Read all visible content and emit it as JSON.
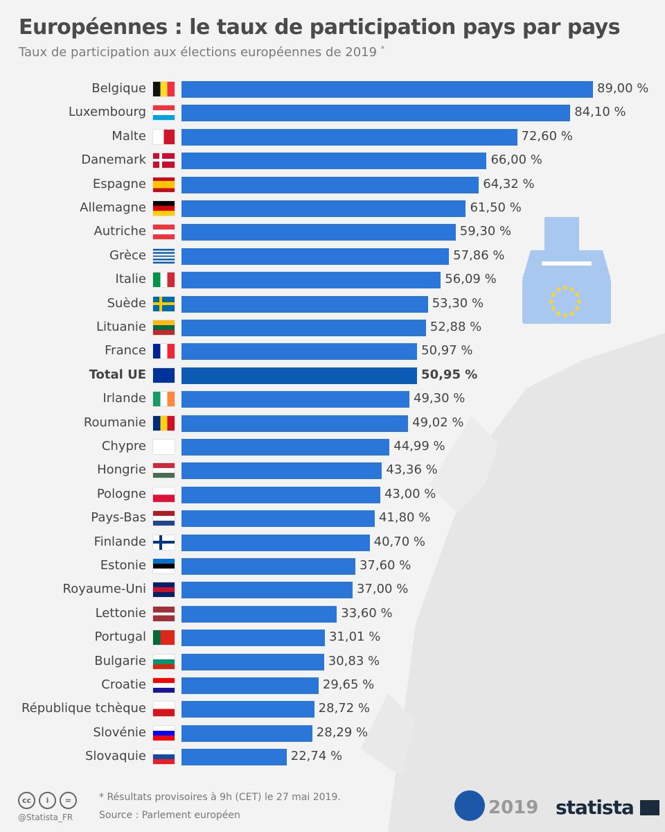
{
  "header": {
    "title": "Européennes : le taux de participation pays par pays",
    "subtitle": "Taux de participation aux élections européennes de 2019",
    "subtitle_mark": "*"
  },
  "chart_data": {
    "type": "bar",
    "orientation": "horizontal",
    "unit": "%",
    "xlim": [
      0,
      89
    ],
    "title": "Européennes : le taux de participation pays par pays",
    "highlight": "Total UE",
    "categories": [
      "Belgique",
      "Luxembourg",
      "Malte",
      "Danemark",
      "Espagne",
      "Allemagne",
      "Autriche",
      "Grèce",
      "Italie",
      "Suède",
      "Lituanie",
      "France",
      "Total UE",
      "Irlande",
      "Roumanie",
      "Chypre",
      "Hongrie",
      "Pologne",
      "Pays-Bas",
      "Finlande",
      "Estonie",
      "Royaume-Uni",
      "Lettonie",
      "Portugal",
      "Bulgarie",
      "Croatie",
      "République tchèque",
      "Slovénie",
      "Slovaquie"
    ],
    "values": [
      89.0,
      84.1,
      72.6,
      66.0,
      64.32,
      61.5,
      59.3,
      57.86,
      56.09,
      53.3,
      52.88,
      50.97,
      50.95,
      49.3,
      49.02,
      44.99,
      43.36,
      43.0,
      41.8,
      40.7,
      37.6,
      37.0,
      33.6,
      31.01,
      30.83,
      29.65,
      28.72,
      28.29,
      22.74
    ],
    "value_labels": [
      "89,00 %",
      "84,10 %",
      "72,60 %",
      "66,00 %",
      "64,32 %",
      "61,50 %",
      "59,30 %",
      "57,86 %",
      "56,09 %",
      "53,30 %",
      "52,88 %",
      "50,97 %",
      "50,95 %",
      "49,30 %",
      "49,02 %",
      "44,99 %",
      "43,36 %",
      "43,00 %",
      "41,80 %",
      "40,70 %",
      "37,60 %",
      "37,00 %",
      "33,60 %",
      "31,01 %",
      "30,83 %",
      "29,65 %",
      "28,72 %",
      "28,29 %",
      "22,74 %"
    ],
    "flags": [
      {
        "d": "v",
        "c": [
          "#111111",
          "#fdda24",
          "#ef3340"
        ]
      },
      {
        "d": "h",
        "c": [
          "#ef3340",
          "#ffffff",
          "#00a3e0"
        ]
      },
      {
        "d": "v",
        "c": [
          "#ffffff",
          "#cf142b"
        ]
      },
      {
        "d": "x",
        "c": [
          "#c8102e",
          "#ffffff"
        ]
      },
      {
        "d": "h",
        "c": [
          "#c60b1e",
          "#ffc400",
          "#ffc400",
          "#c60b1e"
        ]
      },
      {
        "d": "h",
        "c": [
          "#000000",
          "#dd0000",
          "#ffce00"
        ]
      },
      {
        "d": "h",
        "c": [
          "#ef3340",
          "#ffffff",
          "#ef3340"
        ]
      },
      {
        "d": "h",
        "c": [
          "#0d5eaf",
          "#ffffff",
          "#0d5eaf",
          "#ffffff",
          "#0d5eaf",
          "#ffffff",
          "#0d5eaf",
          "#ffffff",
          "#0d5eaf"
        ]
      },
      {
        "d": "v",
        "c": [
          "#009246",
          "#ffffff",
          "#ce2b37"
        ]
      },
      {
        "d": "x",
        "c": [
          "#006aa7",
          "#fecc00"
        ]
      },
      {
        "d": "h",
        "c": [
          "#fdb913",
          "#006a44",
          "#c1272d"
        ]
      },
      {
        "d": "v",
        "c": [
          "#002395",
          "#ffffff",
          "#ed2939"
        ]
      },
      {
        "d": "h",
        "c": [
          "#003399"
        ]
      },
      {
        "d": "v",
        "c": [
          "#169b62",
          "#ffffff",
          "#ff883e"
        ]
      },
      {
        "d": "v",
        "c": [
          "#002b7f",
          "#fcd116",
          "#ce1126"
        ]
      },
      {
        "d": "h",
        "c": [
          "#ffffff"
        ]
      },
      {
        "d": "h",
        "c": [
          "#ce2939",
          "#ffffff",
          "#477050"
        ]
      },
      {
        "d": "h",
        "c": [
          "#ffffff",
          "#dc143c"
        ]
      },
      {
        "d": "h",
        "c": [
          "#ae1c28",
          "#ffffff",
          "#21468b"
        ]
      },
      {
        "d": "x",
        "c": [
          "#ffffff",
          "#003580"
        ]
      },
      {
        "d": "h",
        "c": [
          "#0072ce",
          "#000000",
          "#ffffff"
        ]
      },
      {
        "d": "h",
        "c": [
          "#012169",
          "#c8102e",
          "#012169"
        ]
      },
      {
        "d": "h",
        "c": [
          "#9e3039",
          "#9e3039",
          "#ffffff",
          "#9e3039",
          "#9e3039"
        ]
      },
      {
        "d": "v",
        "c": [
          "#046a38",
          "#da291c",
          "#da291c"
        ]
      },
      {
        "d": "h",
        "c": [
          "#ffffff",
          "#00966e",
          "#d62612"
        ]
      },
      {
        "d": "h",
        "c": [
          "#ff0000",
          "#ffffff",
          "#171796"
        ]
      },
      {
        "d": "h",
        "c": [
          "#ffffff",
          "#d7141a"
        ]
      },
      {
        "d": "h",
        "c": [
          "#ffffff",
          "#0000ff",
          "#ff0000"
        ]
      },
      {
        "d": "h",
        "c": [
          "#ffffff",
          "#0b4ea2",
          "#ee1c25"
        ]
      }
    ]
  },
  "footer": {
    "note": "* Résultats provisoires à 9h (CET) le 27 mai 2019.",
    "source": "Source : Parlement européen",
    "handle": "@Statista_FR",
    "cc_icons": [
      "cc",
      "i",
      "="
    ],
    "election_logo": "2019",
    "brand": "statista"
  }
}
